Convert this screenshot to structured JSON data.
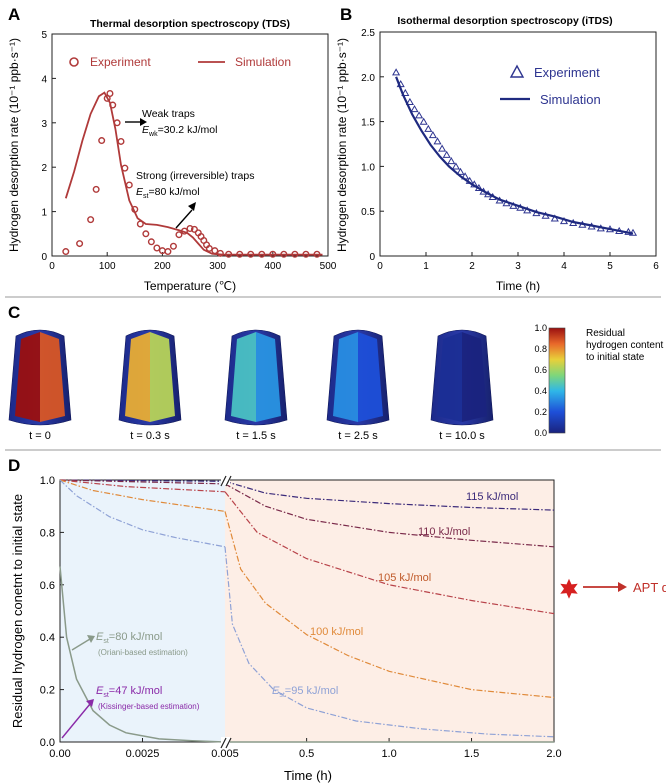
{
  "chart_data": [
    {
      "panel": "A",
      "type": "scatter+line",
      "title": "Thermal desorption spectroscopy (TDS)",
      "xlabel": "Temperature (℃)",
      "ylabel": "Hydrogen desorption rate (10⁻¹ ppb·s⁻¹)",
      "xlim": [
        0,
        500
      ],
      "ylim": [
        0,
        5
      ],
      "xticks": [
        "0",
        "100",
        "200",
        "300",
        "400",
        "500"
      ],
      "yticks": [
        "0",
        "1",
        "2",
        "3",
        "4",
        "5"
      ],
      "series": [
        {
          "name": "Experiment",
          "style": "circle-marker",
          "color": "#b03a3a",
          "x": [
            25,
            50,
            70,
            80,
            90,
            100,
            105,
            110,
            118,
            125,
            132,
            140,
            150,
            160,
            170,
            180,
            190,
            200,
            210,
            220,
            230,
            240,
            250,
            258,
            265,
            270,
            275,
            280,
            285,
            295,
            305,
            320,
            340,
            360,
            380,
            400,
            420,
            440,
            460,
            480
          ],
          "y": [
            0.1,
            0.28,
            0.82,
            1.5,
            2.6,
            3.55,
            3.66,
            3.4,
            3.0,
            2.58,
            1.98,
            1.6,
            1.05,
            0.72,
            0.5,
            0.32,
            0.18,
            0.12,
            0.1,
            0.22,
            0.48,
            0.56,
            0.62,
            0.6,
            0.52,
            0.44,
            0.35,
            0.25,
            0.17,
            0.12,
            0.06,
            0.04,
            0.04,
            0.04,
            0.04,
            0.04,
            0.04,
            0.04,
            0.04,
            0.04
          ]
        },
        {
          "name": "Simulation",
          "style": "line",
          "color": "#b03a3a",
          "x": [
            25,
            40,
            55,
            70,
            85,
            95,
            105,
            115,
            125,
            140,
            155,
            170,
            190,
            210,
            230,
            245,
            255,
            265,
            275,
            290,
            310,
            340,
            400,
            490
          ],
          "y": [
            1.3,
            1.9,
            2.6,
            3.2,
            3.6,
            3.68,
            3.45,
            2.85,
            2.05,
            1.25,
            0.85,
            0.72,
            0.7,
            0.65,
            0.58,
            0.52,
            0.42,
            0.28,
            0.14,
            0.05,
            0.03,
            0.03,
            0.03,
            0.03
          ]
        }
      ],
      "legend": [
        "Experiment",
        "Simulation"
      ],
      "annotations": [
        {
          "text": "Weak traps",
          "sub": "E",
          "subscript": "wk",
          "value": "=30.2 kJ/mol"
        },
        {
          "text": "Strong (irreversible) traps",
          "sub": "E",
          "subscript": "st",
          "value": "=80 kJ/mol"
        }
      ]
    },
    {
      "panel": "B",
      "type": "scatter+line",
      "title": "Isothermal desorption spectroscopy (iTDS)",
      "xlabel": "Time (h)",
      "ylabel": "Hydrogen desorption rate (10⁻¹ ppb·s⁻¹)",
      "xlim": [
        0,
        6
      ],
      "ylim": [
        0,
        2.5
      ],
      "xticks": [
        "0",
        "1",
        "2",
        "3",
        "4",
        "5",
        "6"
      ],
      "yticks": [
        "0",
        "0.5",
        "1.0",
        "1.5",
        "2.0",
        "2.5"
      ],
      "series": [
        {
          "name": "Experiment",
          "style": "triangle-marker",
          "color": "#2e3590",
          "x": [
            0.35,
            0.45,
            0.55,
            0.65,
            0.75,
            0.85,
            0.95,
            1.05,
            1.15,
            1.25,
            1.35,
            1.45,
            1.55,
            1.65,
            1.75,
            1.85,
            1.95,
            2.05,
            2.15,
            2.25,
            2.35,
            2.45,
            2.6,
            2.75,
            2.9,
            3.05,
            3.2,
            3.4,
            3.6,
            3.8,
            4.0,
            4.2,
            4.4,
            4.6,
            4.8,
            5.0,
            5.2,
            5.4,
            5.5
          ],
          "y": [
            2.05,
            1.92,
            1.82,
            1.72,
            1.64,
            1.57,
            1.5,
            1.42,
            1.35,
            1.28,
            1.2,
            1.13,
            1.06,
            1.0,
            0.94,
            0.89,
            0.84,
            0.8,
            0.76,
            0.72,
            0.69,
            0.66,
            0.62,
            0.59,
            0.56,
            0.54,
            0.51,
            0.48,
            0.45,
            0.42,
            0.39,
            0.37,
            0.35,
            0.33,
            0.31,
            0.3,
            0.28,
            0.27,
            0.26
          ]
        },
        {
          "name": "Simulation",
          "style": "line",
          "color": "#1f2a80",
          "x": [
            0.35,
            0.5,
            0.7,
            0.9,
            1.1,
            1.3,
            1.5,
            1.75,
            2.0,
            2.3,
            2.6,
            3.0,
            3.4,
            3.8,
            4.2,
            4.6,
            5.0,
            5.5
          ],
          "y": [
            2.0,
            1.8,
            1.58,
            1.4,
            1.24,
            1.11,
            1.0,
            0.89,
            0.8,
            0.71,
            0.63,
            0.56,
            0.49,
            0.44,
            0.38,
            0.34,
            0.3,
            0.25
          ]
        }
      ],
      "legend": [
        "Experiment",
        "Simulation"
      ]
    },
    {
      "panel": "C",
      "type": "heatmap",
      "colorbar_label": "Residual hydrogen content to initial state",
      "colorbar_ticks": [
        "1.0",
        "0.8",
        "0.6",
        "0.4",
        "0.2",
        "0.0"
      ],
      "colorbar_range": [
        0,
        1
      ],
      "snapshots": [
        {
          "label": "t = 0",
          "inner_value": 1.0
        },
        {
          "label": "t = 0.3 s",
          "inner_value": 0.75
        },
        {
          "label": "t = 1.5 s",
          "inner_value": 0.45
        },
        {
          "label": "t = 2.5 s",
          "inner_value": 0.32
        },
        {
          "label": "t = 10.0 s",
          "inner_value": 0.05
        }
      ]
    },
    {
      "panel": "D",
      "type": "line",
      "xlabel": "Time (h)",
      "ylabel": "Residual hydrogen conetnt to initial state",
      "ylim": [
        0,
        1
      ],
      "x_segment1": {
        "range": [
          0,
          0.005
        ],
        "ticks": [
          "0.00",
          "0.0025",
          "0.005"
        ]
      },
      "x_segment2": {
        "range": [
          0.005,
          2.0
        ],
        "ticks": [
          "0.5",
          "1.0",
          "1.5",
          "2.0"
        ]
      },
      "yticks": [
        "0.0",
        "0.2",
        "0.4",
        "0.6",
        "0.8",
        "1.0"
      ],
      "series": [
        {
          "name": "115 kJ/mol",
          "color": "#3b2a7a",
          "seg1": {
            "x": [
              0,
              0.005
            ],
            "y": [
              1.0,
              0.995
            ]
          },
          "seg2": {
            "x": [
              0.005,
              0.25,
              0.5,
              1.0,
              1.5,
              2.0
            ],
            "y": [
              0.995,
              0.95,
              0.93,
              0.91,
              0.895,
              0.885
            ]
          }
        },
        {
          "name": "110 kJ/mol",
          "color": "#7a2a4a",
          "seg1": {
            "x": [
              0,
              0.005
            ],
            "y": [
              1.0,
              0.985
            ]
          },
          "seg2": {
            "x": [
              0.005,
              0.25,
              0.5,
              1.0,
              1.5,
              2.0
            ],
            "y": [
              0.985,
              0.9,
              0.85,
              0.8,
              0.77,
              0.745
            ]
          }
        },
        {
          "name": "105 kJ/mol",
          "color": "#b8434a",
          "seg1": {
            "x": [
              0,
              0.002,
              0.005
            ],
            "y": [
              1.0,
              0.975,
              0.955
            ]
          },
          "seg2": {
            "x": [
              0.005,
              0.2,
              0.5,
              1.0,
              1.5,
              2.0
            ],
            "y": [
              0.955,
              0.8,
              0.7,
              0.6,
              0.54,
              0.49
            ]
          }
        },
        {
          "name": "100 kJ/mol",
          "color": "#e08a3a",
          "seg1": {
            "x": [
              0,
              0.001,
              0.0025,
              0.005
            ],
            "y": [
              1.0,
              0.96,
              0.925,
              0.88
            ]
          },
          "seg2": {
            "x": [
              0.005,
              0.1,
              0.25,
              0.5,
              0.75,
              1.0,
              1.5,
              2.0
            ],
            "y": [
              0.88,
              0.66,
              0.53,
              0.41,
              0.33,
              0.27,
              0.2,
              0.17
            ]
          }
        },
        {
          "name": "95 kJ/mol",
          "color": "#8fa2d6",
          "seg1": {
            "x": [
              0,
              0.0005,
              0.0015,
              0.0025,
              0.0035,
              0.005
            ],
            "y": [
              1.0,
              0.94,
              0.86,
              0.81,
              0.78,
              0.745
            ]
          },
          "seg2": {
            "x": [
              0.005,
              0.05,
              0.15,
              0.3,
              0.5,
              0.8,
              1.2,
              1.6,
              2.0
            ],
            "y": [
              0.745,
              0.45,
              0.3,
              0.2,
              0.13,
              0.08,
              0.05,
              0.03,
              0.02
            ]
          }
        },
        {
          "name": "80 kJ/mol",
          "color": "#8a9a8a",
          "seg1": {
            "x": [
              0,
              0.0002,
              0.0005,
              0.001,
              0.0015,
              0.002,
              0.003,
              0.004,
              0.005
            ],
            "y": [
              0.67,
              0.4,
              0.24,
              0.12,
              0.065,
              0.035,
              0.012,
              0.005,
              0.0
            ]
          },
          "seg2": {
            "x": [
              0.005,
              2.0
            ],
            "y": [
              0.0,
              0.0
            ]
          }
        },
        {
          "name": "47 kJ/mol",
          "color": "#8a9a8a",
          "seg1": {
            "x": [
              0,
              5e-05
            ],
            "y": [
              0.0,
              0.0
            ]
          },
          "seg2": {
            "x": [
              0.005,
              2.0
            ],
            "y": [
              0.0,
              0.0
            ]
          }
        }
      ],
      "series_labels": [
        "115 kJ/mol",
        "110 kJ/mol",
        "105 kJ/mol",
        "100 kJ/mol"
      ],
      "est80": {
        "sym": "E",
        "sub": "st",
        "value": "=80 kJ/mol",
        "note": "(Oriani-based estimation)"
      },
      "est47": {
        "sym": "E",
        "sub": "st",
        "value": "=47 kJ/mol",
        "note": "(Kissinger-based estimation)"
      },
      "est95": {
        "sym": "E",
        "sub": "st",
        "value": "=95 kJ/mol"
      },
      "apt": {
        "label": "APT data",
        "x": 2.0,
        "y": 0.585
      }
    }
  ],
  "panel_labels": [
    "A",
    "B",
    "C",
    "D"
  ],
  "colors": {
    "red": "#b03a3a",
    "navy": "#2e3590",
    "apt": "#d62020"
  }
}
